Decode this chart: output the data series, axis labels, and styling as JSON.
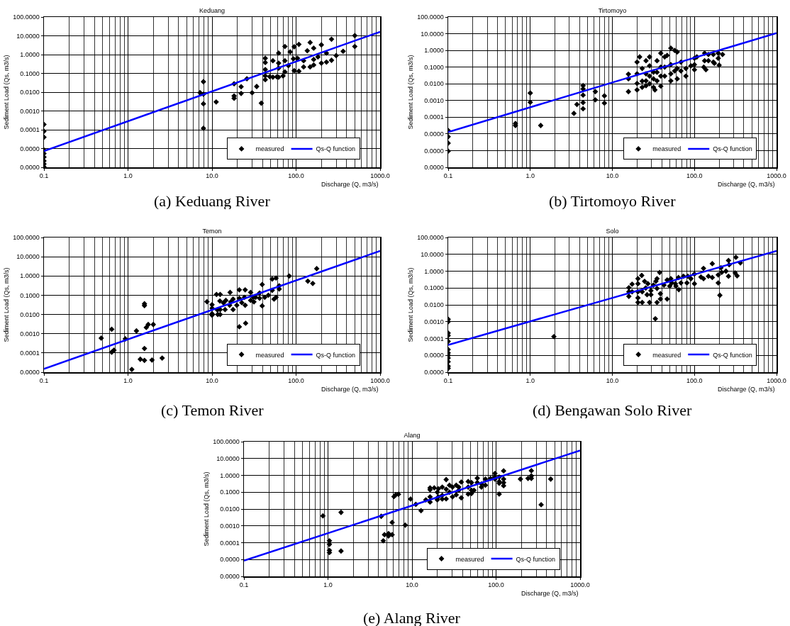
{
  "chart_data": [
    {
      "type": "scatter",
      "title": "Keduang",
      "xlabel": "Discharge (Q, m3/s)",
      "ylabel": "Sediment Load (Qs, m3/s)",
      "log": "xy",
      "grid": true,
      "legend": "bottom right",
      "xlim": [
        0.1,
        1000
      ],
      "xticks": [
        {
          "value": 0.1,
          "label": "0.1"
        },
        {
          "value": 1,
          "label": "1.0"
        },
        {
          "value": 10,
          "label": "10.0"
        },
        {
          "value": 100,
          "label": "100.0"
        },
        {
          "value": 1000,
          "label": "1000.0"
        }
      ],
      "ylim": [
        1e-06,
        100
      ],
      "yticks": [
        {
          "value": 1e-06,
          "label": "0.0000"
        },
        {
          "value": 1e-05,
          "label": "0.0000"
        },
        {
          "value": 0.0001,
          "label": "0.0001"
        },
        {
          "value": 0.001,
          "label": "0.0010"
        },
        {
          "value": 0.01,
          "label": "0.0100"
        },
        {
          "value": 0.1,
          "label": "0.1000"
        },
        {
          "value": 1,
          "label": "1.0000"
        },
        {
          "value": 10,
          "label": "10.0000"
        },
        {
          "value": 100,
          "label": "100.0000"
        }
      ],
      "annotations": [
        "(a) Keduang River"
      ],
      "series": [
        {
          "name": "measured",
          "type": "scatter",
          "marker": "diamond",
          "color": "#000000",
          "x": [
            0.1,
            0.1,
            0.1,
            0.1,
            0.1,
            0.1,
            0.1,
            0.1,
            0.1,
            7.2,
            7.9,
            7.9,
            7.9,
            7.9,
            11.2,
            18.3,
            18.3,
            18.3,
            22.2,
            22.2,
            26,
            30,
            34,
            38.6,
            43,
            43,
            43,
            43,
            43,
            48.6,
            53,
            53,
            59,
            62,
            62,
            62,
            62,
            70,
            73.6,
            73.6,
            73.6,
            81,
            85,
            93,
            95,
            95,
            104,
            108,
            108,
            123,
            123,
            136,
            147,
            147,
            162,
            162,
            162,
            182,
            200,
            200,
            230,
            230,
            264,
            264,
            300,
            363,
            500,
            500
          ],
          "values": [
            0.00019,
            8.3e-05,
            4e-05,
            8.3e-06,
            5.4e-06,
            3.5e-06,
            2.2e-06,
            1.5e-06,
            1.07e-06,
            0.0094,
            0.036,
            0.0078,
            0.0024,
            0.00012,
            0.003,
            0.028,
            0.0063,
            0.0047,
            0.0195,
            0.0085,
            0.052,
            0.0093,
            0.02,
            0.0026,
            0.64,
            0.38,
            0.16,
            0.074,
            0.046,
            0.067,
            0.47,
            0.063,
            0.066,
            1.2,
            0.35,
            0.19,
            0.063,
            0.073,
            2.7,
            0.47,
            0.12,
            0.26,
            1.4,
            0.6,
            2.6,
            0.14,
            0.64,
            3.5,
            0.13,
            0.47,
            0.22,
            1.6,
            4.4,
            0.22,
            2.2,
            0.55,
            0.28,
            0.75,
            3.3,
            0.35,
            1.2,
            0.4,
            6.6,
            0.5,
            0.88,
            1.5,
            10.2,
            2.7
          ]
        },
        {
          "name": "Qs-Q function",
          "type": "line",
          "color": "#0000ff",
          "x": [
            0.1,
            1000
          ],
          "values": [
            7.4e-06,
            16.4
          ]
        }
      ]
    },
    {
      "type": "scatter",
      "title": "Tirtomoyo",
      "xlabel": "Discharge (Q, m3/s)",
      "ylabel": "Sediment Load (Qs, m3/s)",
      "log": "xy",
      "grid": true,
      "legend": "bottom right",
      "xlim": [
        0.1,
        1000
      ],
      "xticks": [
        {
          "value": 0.1,
          "label": "0.1"
        },
        {
          "value": 1,
          "label": "1.0"
        },
        {
          "value": 10,
          "label": "10.0"
        },
        {
          "value": 100,
          "label": "100.0"
        },
        {
          "value": 1000,
          "label": "1000.0"
        }
      ],
      "ylim": [
        1e-07,
        100
      ],
      "yticks": [
        {
          "value": 1e-07,
          "label": "0.0000"
        },
        {
          "value": 1e-06,
          "label": "0.0000"
        },
        {
          "value": 1e-05,
          "label": "0.0000"
        },
        {
          "value": 0.0001,
          "label": "0.0001"
        },
        {
          "value": 0.001,
          "label": "0.0010"
        },
        {
          "value": 0.01,
          "label": "0.0100"
        },
        {
          "value": 0.1,
          "label": "0.1000"
        },
        {
          "value": 1,
          "label": "1.0000"
        },
        {
          "value": 10,
          "label": "10.0000"
        },
        {
          "value": 100,
          "label": "100.0000"
        }
      ],
      "annotations": [
        "(b) Tirtomoyo River"
      ],
      "series": [
        {
          "name": "measured",
          "type": "scatter",
          "marker": "diamond",
          "color": "#000000",
          "x": [
            0.1,
            0.1,
            0.1,
            0.1,
            0.66,
            0.66,
            1,
            1,
            1.34,
            3.4,
            3.7,
            4.4,
            4.4,
            4.4,
            4.4,
            4.4,
            6.2,
            6.2,
            8,
            8,
            15.7,
            15.7,
            15.7,
            20,
            20,
            20,
            20,
            21.5,
            23.1,
            23.1,
            23.1,
            25.7,
            25.7,
            25.7,
            25.7,
            28.4,
            28.4,
            28.4,
            28.4,
            31.7,
            31.7,
            31.7,
            35,
            35,
            35,
            33,
            38.9,
            38.9,
            38.9,
            38.9,
            43.4,
            43.4,
            43.4,
            46.5,
            51.6,
            51.6,
            51.6,
            51.6,
            57.4,
            57.4,
            61.7,
            61.7,
            61.7,
            68.4,
            68.4,
            78.7,
            78.7,
            90.6,
            100,
            100,
            100,
            107,
            133,
            133,
            138,
            130,
            148,
            148,
            170,
            170,
            175,
            195,
            195,
            200,
            220
          ],
          "values": [
            1.6e-05,
            6.8e-06,
            2.8e-06,
            9.3e-07,
            4.2e-05,
            3.2e-05,
            0.0028,
            0.00078,
            3.2e-05,
            0.00017,
            0.00058,
            0.0078,
            0.0049,
            0.0021,
            0.00075,
            0.00032,
            0.0034,
            0.0011,
            0.0019,
            0.0007,
            0.038,
            0.02,
            0.0034,
            0.2,
            0.04,
            0.0105,
            0.0043,
            0.41,
            0.083,
            0.0145,
            0.0062,
            0.24,
            0.04,
            0.015,
            0.0077,
            0.41,
            0.12,
            0.029,
            0.01,
            0.05,
            0.02,
            0.0062,
            0.24,
            0.049,
            0.015,
            0.0043,
            0.68,
            0.1,
            0.029,
            0.0073,
            0.41,
            0.1,
            0.029,
            0.5,
            1.37,
            0.14,
            0.04,
            0.015,
            1.0,
            0.059,
            0.81,
            0.083,
            0.02,
            0.2,
            0.059,
            0.083,
            0.029,
            0.12,
            0.34,
            0.14,
            0.07,
            0.41,
            0.68,
            0.24,
            0.07,
            0.1,
            0.24,
            0.57,
            0.57,
            0.2,
            0.17,
            0.68,
            0.34,
            0.13,
            0.57
          ]
        },
        {
          "name": "Qs-Q function",
          "type": "line",
          "color": "#0000ff",
          "x": [
            0.1,
            1000
          ],
          "values": [
            1.3e-05,
            11
          ]
        }
      ]
    },
    {
      "type": "scatter",
      "title": "Temon",
      "xlabel": "Discharge (Q, m3/s)",
      "ylabel": "Sediment Load (Qs, m3/s)",
      "log": "xy",
      "grid": true,
      "legend": "bottom right",
      "xlim": [
        0.1,
        1000
      ],
      "xticks": [
        {
          "value": 0.1,
          "label": "0.1"
        },
        {
          "value": 1,
          "label": "1.0"
        },
        {
          "value": 10,
          "label": "10.0"
        },
        {
          "value": 100,
          "label": "100.0"
        },
        {
          "value": 1000,
          "label": "1000.0"
        }
      ],
      "ylim": [
        1e-05,
        100
      ],
      "yticks": [
        {
          "value": 1e-05,
          "label": "0.0000"
        },
        {
          "value": 0.0001,
          "label": "0.0001"
        },
        {
          "value": 0.001,
          "label": "0.0010"
        },
        {
          "value": 0.01,
          "label": "0.0100"
        },
        {
          "value": 0.1,
          "label": "0.1000"
        },
        {
          "value": 1,
          "label": "1.0000"
        },
        {
          "value": 10,
          "label": "10.0000"
        },
        {
          "value": 100,
          "label": "100.0000"
        }
      ],
      "annotations": [
        "(c) Temon River"
      ],
      "series": [
        {
          "name": "measured",
          "type": "scatter",
          "marker": "diamond",
          "color": "#000000",
          "x": [
            0.48,
            0.64,
            0.64,
            0.68,
            0.93,
            1.11,
            1.26,
            1.4,
            1.57,
            1.57,
            1.57,
            1.57,
            1.65,
            1.74,
            1.93,
            2.0,
            2.55,
            8.7,
            10,
            10,
            10,
            10,
            11.3,
            11.6,
            11.7,
            12.4,
            12.5,
            12.5,
            12.5,
            13.7,
            14.3,
            14.6,
            16.4,
            16.2,
            16.7,
            17.8,
            17.8,
            19.7,
            21.1,
            21.1,
            21.1,
            22.6,
            24.3,
            24.8,
            24.8,
            25.1,
            28.8,
            28.8,
            31,
            31.5,
            33,
            36.8,
            36.8,
            39.5,
            39.5,
            42.4,
            46.8,
            52,
            52,
            54.7,
            57.8,
            57.8,
            63,
            63,
            82.8,
            138,
            158,
            176
          ],
          "values": [
            0.00059,
            0.0017,
            0.00011,
            0.00014,
            0.00054,
            1.4e-05,
            0.0014,
            4.7e-05,
            0.036,
            0.029,
            0.00017,
            4.1e-05,
            0.0021,
            0.003,
            4.3e-05,
            0.003,
            5.4e-05,
            0.046,
            0.032,
            0.021,
            0.011,
            0.0092,
            0.11,
            0.017,
            0.01,
            0.05,
            0.11,
            0.01,
            0.018,
            0.04,
            0.018,
            0.054,
            0.14,
            0.03,
            0.045,
            0.063,
            0.018,
            0.03,
            0.19,
            0.069,
            0.0023,
            0.041,
            0.078,
            0.19,
            0.03,
            0.0035,
            0.14,
            0.054,
            0.078,
            0.045,
            0.078,
            0.13,
            0.07,
            0.36,
            0.028,
            0.078,
            0.1,
            0.18,
            0.69,
            0.063,
            0.78,
            0.078,
            0.31,
            0.21,
            1.0,
            0.54,
            0.41,
            2.4
          ]
        },
        {
          "name": "Qs-Q function",
          "type": "line",
          "color": "#0000ff",
          "x": [
            0.1,
            1000
          ],
          "values": [
            1.5e-05,
            20
          ]
        }
      ]
    },
    {
      "type": "scatter",
      "title": "Solo",
      "xlabel": "Discharge (Q, m3/s)",
      "ylabel": "Sediment Load (Qs, m3/s)",
      "log": "xy",
      "grid": true,
      "legend": "bottom right",
      "xlim": [
        0.1,
        1000
      ],
      "xticks": [
        {
          "value": 0.1,
          "label": "0.1"
        },
        {
          "value": 1,
          "label": "1.0"
        },
        {
          "value": 10,
          "label": "10.0"
        },
        {
          "value": 100,
          "label": "100.0"
        },
        {
          "value": 1000,
          "label": "1000.0"
        }
      ],
      "ylim": [
        1e-06,
        100
      ],
      "yticks": [
        {
          "value": 1e-06,
          "label": "0.0000"
        },
        {
          "value": 1e-05,
          "label": "0.0000"
        },
        {
          "value": 0.0001,
          "label": "0.0001"
        },
        {
          "value": 0.001,
          "label": "0.0010"
        },
        {
          "value": 0.01,
          "label": "0.0100"
        },
        {
          "value": 0.1,
          "label": "0.1000"
        },
        {
          "value": 1,
          "label": "1.0000"
        },
        {
          "value": 10,
          "label": "10.0000"
        },
        {
          "value": 100,
          "label": "100.0000"
        }
      ],
      "annotations": [
        "(d) Bengawan Solo River"
      ],
      "series": [
        {
          "name": "measured",
          "type": "scatter",
          "marker": "diamond",
          "color": "#000000",
          "x": [
            0.1,
            0.1,
            0.1,
            0.1,
            0.1,
            0.1,
            0.1,
            0.1,
            0.1,
            0.1,
            0.1,
            0.1,
            1.94,
            33.4,
            15.9,
            15.9,
            15.9,
            17.4,
            17.4,
            20.5,
            20.5,
            20.5,
            20.5,
            20.5,
            22.8,
            23.1,
            23.1,
            24.7,
            25.5,
            27.1,
            26.5,
            28.4,
            29.5,
            29.5,
            31.6,
            33.9,
            35,
            35,
            35,
            37.7,
            38.5,
            38.5,
            42.5,
            46.5,
            46.5,
            50,
            51.6,
            53,
            58.6,
            59.5,
            63.8,
            64.5,
            68.4,
            73.5,
            81,
            83,
            90.6,
            100,
            100,
            120,
            129,
            129,
            148,
            165,
            165,
            195,
            195,
            204,
            210,
            215,
            242,
            260,
            265,
            260,
            320,
            313,
            331,
            363
          ],
          "values": [
            0.0014,
            0.001,
            0.00021,
            0.00015,
            6.8e-05,
            2.2e-05,
            1.4e-05,
            1e-05,
            6.9e-06,
            4.2e-06,
            2.3e-06,
            1.7e-06,
            0.00013,
            0.0015,
            0.104,
            0.06,
            0.032,
            0.17,
            0.06,
            0.36,
            0.18,
            0.06,
            0.026,
            0.014,
            0.56,
            0.06,
            0.014,
            0.25,
            0.1,
            0.18,
            0.04,
            0.014,
            0.04,
            0.07,
            0.15,
            0.25,
            0.36,
            0.095,
            0.014,
            0.84,
            0.046,
            0.022,
            0.15,
            0.3,
            0.022,
            0.13,
            0.36,
            0.2,
            0.18,
            0.13,
            0.42,
            0.08,
            0.2,
            0.5,
            0.2,
            0.5,
            0.36,
            0.68,
            0.18,
            0.45,
            1.46,
            0.36,
            0.5,
            2.8,
            0.42,
            0.6,
            0.2,
            0.037,
            1.6,
            0.85,
            1.0,
            4.3,
            2.4,
            0.5,
            6.7,
            0.8,
            0.53,
            3.1
          ]
        },
        {
          "name": "Qs-Q function",
          "type": "line",
          "color": "#0000ff",
          "x": [
            0.1,
            1000
          ],
          "values": [
            4.2e-05,
            16
          ]
        }
      ]
    },
    {
      "type": "scatter",
      "title": "Alang",
      "xlabel": "Discharge (Q, m3/s)",
      "ylabel": "Sediment Load (Qs, m3/s)",
      "log": "xy",
      "grid": true,
      "legend": "bottom right",
      "xlim": [
        0.1,
        1000
      ],
      "xticks": [
        {
          "value": 0.1,
          "label": "0.1"
        },
        {
          "value": 1,
          "label": "1.0"
        },
        {
          "value": 10,
          "label": "10.0"
        },
        {
          "value": 100,
          "label": "100.0"
        },
        {
          "value": 1000,
          "label": "1000.0"
        }
      ],
      "ylim": [
        1e-06,
        100
      ],
      "yticks": [
        {
          "value": 1e-06,
          "label": "0.0000"
        },
        {
          "value": 1e-05,
          "label": "0.0000"
        },
        {
          "value": 0.0001,
          "label": "0.0001"
        },
        {
          "value": 0.001,
          "label": "0.0010"
        },
        {
          "value": 0.01,
          "label": "0.0100"
        },
        {
          "value": 0.1,
          "label": "0.1000"
        },
        {
          "value": 1,
          "label": "1.0000"
        },
        {
          "value": 10,
          "label": "10.0000"
        },
        {
          "value": 100,
          "label": "100.0000"
        }
      ],
      "annotations": [
        "(e) Alang River"
      ],
      "series": [
        {
          "name": "measured",
          "type": "scatter",
          "marker": "diamond",
          "color": "#000000",
          "x": [
            0.87,
            1.04,
            1.04,
            1.04,
            1.04,
            1.43,
            1.43,
            4.3,
            4.55,
            4.7,
            5.25,
            5.25,
            5.8,
            5.8,
            6.1,
            6.4,
            6.9,
            8.3,
            9.6,
            11.1,
            12.8,
            14.6,
            16.4,
            16.4,
            16.4,
            16.4,
            18.4,
            20,
            20,
            20.6,
            20.6,
            22.9,
            22.9,
            22.9,
            25.5,
            25.5,
            25.5,
            27.9,
            27.9,
            30.3,
            30.3,
            33.6,
            33.6,
            36,
            36,
            38.6,
            38.6,
            46.6,
            46.6,
            46.6,
            51,
            51,
            51,
            54.6,
            59.8,
            59.8,
            67,
            67,
            74.7,
            74.7,
            86,
            97,
            97,
            97,
            109,
            109,
            109,
            109,
            123,
            123,
            123,
            123,
            195,
            240,
            263,
            263,
            263,
            344,
            447
          ],
          "values": [
            0.0039,
            0.00013,
            8e-05,
            3.5e-05,
            2.6e-05,
            0.0063,
            3.2e-05,
            0.0037,
            0.00013,
            0.0003,
            0.00035,
            0.00025,
            0.0016,
            0.0003,
            0.055,
            0.07,
            0.075,
            0.0011,
            0.039,
            0.019,
            0.008,
            0.035,
            0.18,
            0.14,
            0.053,
            0.026,
            0.18,
            0.1,
            0.035,
            0.16,
            0.053,
            0.2,
            0.065,
            0.039,
            0.56,
            0.15,
            0.04,
            0.26,
            0.1,
            0.2,
            0.053,
            0.26,
            0.07,
            0.2,
            0.13,
            0.4,
            0.046,
            0.43,
            0.2,
            0.077,
            0.37,
            0.13,
            0.084,
            0.13,
            0.68,
            0.37,
            0.31,
            0.2,
            0.6,
            0.26,
            0.66,
            1.3,
            0.8,
            0.6,
            0.8,
            0.43,
            0.34,
            0.077,
            1.85,
            0.6,
            0.37,
            0.24,
            0.6,
            0.66,
            1.9,
            0.93,
            0.66,
            0.018,
            0.6
          ]
        },
        {
          "name": "Qs-Q function",
          "type": "line",
          "color": "#0000ff",
          "x": [
            0.1,
            1000
          ],
          "values": [
            8.5e-06,
            30
          ]
        }
      ]
    }
  ]
}
